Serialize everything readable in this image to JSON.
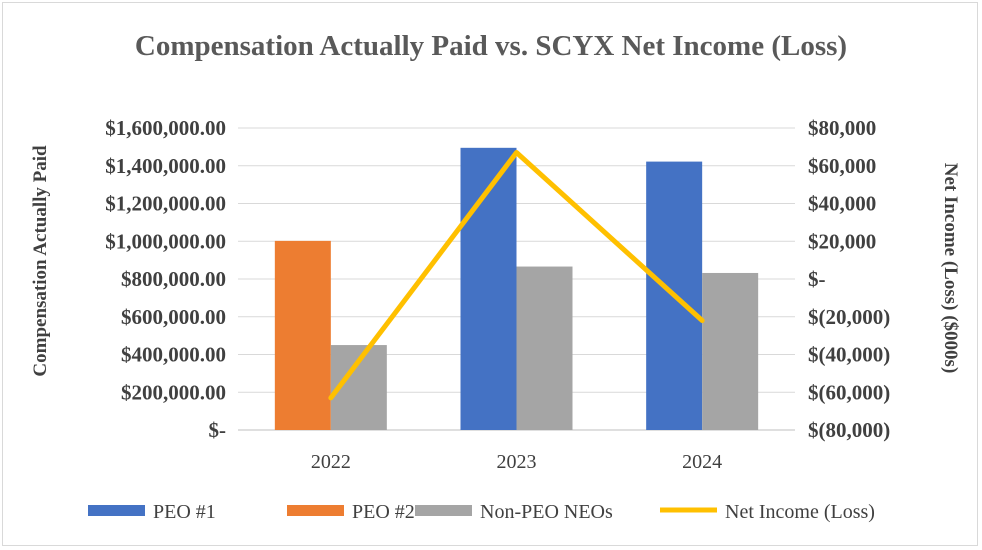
{
  "chart_data": {
    "type": "bar",
    "title": "Compensation Actually Paid vs. SCYX Net Income (Loss)",
    "categories": [
      "2022",
      "2023",
      "2024"
    ],
    "y_left": {
      "label": "Compensation Actually Paid",
      "range": [
        0,
        1600000
      ],
      "ticks": [
        "$-",
        "$200,000.00",
        "$400,000.00",
        "$600,000.00",
        "$800,000.00",
        "$1,000,000.00",
        "$1,200,000.00",
        "$1,400,000.00",
        "$1,600,000.00"
      ]
    },
    "y_right": {
      "label": "Net Income (Loss) ($000s)",
      "range": [
        -80000,
        80000
      ],
      "ticks": [
        "$(80,000)",
        "$(60,000)",
        "$(40,000)",
        "$(20,000)",
        "$-",
        "$20,000",
        "$40,000",
        "$60,000",
        "$80,000"
      ]
    },
    "series": [
      {
        "name": "PEO #1",
        "type": "bar",
        "axis": "left",
        "color": "#4472c4",
        "values": [
          null,
          1495000,
          1422000
        ]
      },
      {
        "name": "PEO #2",
        "type": "bar",
        "axis": "left",
        "color": "#ed7d31",
        "values": [
          1002000,
          null,
          null
        ]
      },
      {
        "name": "Non-PEO NEOs",
        "type": "bar",
        "axis": "left",
        "color": "#a5a5a5",
        "values": [
          450000,
          866000,
          832000
        ]
      },
      {
        "name": "Net Income (Loss)",
        "type": "line",
        "axis": "right",
        "color": "#ffc000",
        "values": [
          -63000,
          67000,
          -22000
        ]
      }
    ],
    "grid": true,
    "legend_position": "bottom"
  }
}
